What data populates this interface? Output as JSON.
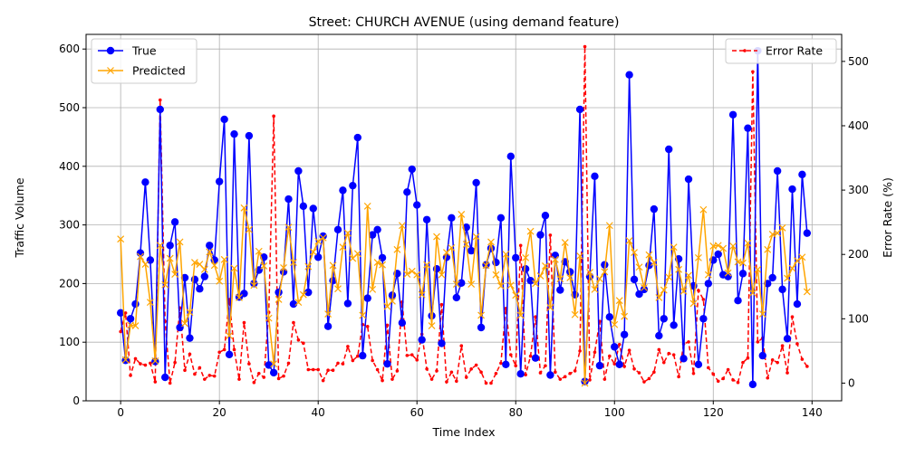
{
  "chart_data": {
    "type": "line",
    "title": "Street: CHURCH AVENUE (using demand feature)",
    "xlabel": "Time Index",
    "ylabel": "Traffic Volume",
    "ylabel_right": "Error Rate (%)",
    "xlim": [
      -7,
      146
    ],
    "ylim": [
      0,
      625
    ],
    "ylim_right": [
      -27.5,
      542
    ],
    "xticks": [
      0,
      20,
      40,
      60,
      80,
      100,
      120,
      140
    ],
    "yticks": [
      0,
      100,
      200,
      300,
      400,
      500,
      600
    ],
    "yticks_right": [
      0,
      100,
      200,
      300,
      400,
      500
    ],
    "grid": true,
    "legend_left": "upper-left",
    "legend_right": "upper-right",
    "colors": {
      "true": "#0000ff",
      "predicted": "#ffa500",
      "error": "#ff0000"
    },
    "x": [
      0,
      1,
      2,
      3,
      4,
      5,
      6,
      7,
      8,
      9,
      10,
      11,
      12,
      13,
      14,
      15,
      16,
      17,
      18,
      19,
      20,
      21,
      22,
      23,
      24,
      25,
      26,
      27,
      28,
      29,
      30,
      31,
      32,
      33,
      34,
      35,
      36,
      37,
      38,
      39,
      40,
      41,
      42,
      43,
      44,
      45,
      46,
      47,
      48,
      49,
      50,
      51,
      52,
      53,
      54,
      55,
      56,
      57,
      58,
      59,
      60,
      61,
      62,
      63,
      64,
      65,
      66,
      67,
      68,
      69,
      70,
      71,
      72,
      73,
      74,
      75,
      76,
      77,
      78,
      79,
      80,
      81,
      82,
      83,
      84,
      85,
      86,
      87,
      88,
      89,
      90,
      91,
      92,
      93,
      94,
      95,
      96,
      97,
      98,
      99,
      100,
      101,
      102,
      103,
      104,
      105,
      106,
      107,
      108,
      109,
      110,
      111,
      112,
      113,
      114,
      115,
      116,
      117,
      118,
      119,
      120,
      121,
      122,
      123,
      124,
      125,
      126,
      127,
      128,
      129,
      130,
      131,
      132,
      133,
      134,
      135,
      136,
      137,
      138,
      139
    ],
    "series": [
      {
        "name": "True",
        "marker": "o",
        "values": [
          150,
          69,
          140,
          165,
          252,
          373,
          240,
          67,
          497,
          40,
          265,
          305,
          125,
          210,
          107,
          207,
          191,
          212,
          265,
          240,
          374,
          480,
          79,
          455,
          177,
          183,
          452,
          200,
          223,
          245,
          61,
          48,
          185,
          220,
          344,
          165,
          392,
          332,
          185,
          328,
          245,
          281,
          127,
          205,
          292,
          359,
          166,
          367,
          449,
          77,
          175,
          283,
          292,
          244,
          63,
          180,
          217,
          133,
          356,
          395,
          334,
          104,
          309,
          145,
          225,
          98,
          245,
          312,
          176,
          201,
          296,
          256,
          372,
          125,
          232,
          260,
          236,
          312,
          62,
          417,
          244,
          46,
          225,
          205,
          73,
          283,
          316,
          44,
          248,
          189,
          237,
          220,
          181,
          497,
          33,
          212,
          383,
          60,
          232,
          143,
          92,
          62,
          113,
          556,
          207,
          182,
          190,
          231,
          327,
          111,
          140,
          429,
          129,
          242,
          72,
          378,
          196,
          62,
          140,
          200,
          240,
          250,
          215,
          212,
          488,
          171,
          217,
          465,
          28,
          597,
          77,
          200,
          210,
          392,
          190,
          106,
          361,
          165,
          386,
          286
        ]
      },
      {
        "name": "Predicted",
        "marker": "x",
        "values": [
          276,
          70,
          129,
          128,
          246,
          233,
          168,
          68,
          265,
          198,
          243,
          216,
          271,
          132,
          151,
          236,
          233,
          224,
          254,
          231,
          204,
          241,
          111,
          226,
          176,
          329,
          292,
          197,
          255,
          230,
          141,
          63,
          173,
          227,
          296,
          236,
          168,
          181,
          229,
          254,
          272,
          278,
          148,
          231,
          191,
          262,
          286,
          243,
          251,
          146,
          332,
          190,
          236,
          232,
          161,
          170,
          258,
          299,
          216,
          221,
          215,
          181,
          232,
          128,
          280,
          215,
          253,
          261,
          199,
          318,
          267,
          199,
          280,
          146,
          231,
          271,
          215,
          196,
          250,
          197,
          180,
          146,
          244,
          289,
          200,
          213,
          230,
          159,
          241,
          208,
          270,
          210,
          147,
          247,
          30,
          219,
          190,
          208,
          220,
          299,
          130,
          171,
          144,
          273,
          253,
          228,
          193,
          249,
          236,
          176,
          189,
          211,
          262,
          224,
          187,
          214,
          166,
          244,
          326,
          215,
          264,
          265,
          260,
          218,
          264,
          237,
          235,
          269,
          184,
          224,
          148,
          258,
          284,
          286,
          295,
          209,
          226,
          239,
          245,
          186
        ]
      },
      {
        "name": "Error Rate",
        "axis": "right",
        "style": "dashed",
        "marker": ".",
        "values": [
          80,
          109,
          12,
          38,
          30,
          28,
          31,
          2,
          440,
          96,
          0,
          32,
          117,
          20,
          45,
          14,
          24,
          6,
          12,
          11,
          48,
          52,
          130,
          52,
          6,
          94,
          30,
          1,
          15,
          9,
          110,
          415,
          7,
          11,
          31,
          94,
          67,
          62,
          21,
          21,
          21,
          4,
          20,
          20,
          31,
          30,
          57,
          35,
          42,
          91,
          88,
          35,
          21,
          4,
          90,
          6,
          19,
          126,
          43,
          44,
          36,
          76,
          22,
          6,
          19,
          122,
          2,
          17,
          3,
          58,
          9,
          22,
          28,
          17,
          0,
          0,
          15,
          31,
          116,
          44,
          27,
          214,
          13,
          42,
          103,
          16,
          27,
          230,
          17,
          6,
          10,
          15,
          19,
          50,
          523,
          5,
          48,
          96,
          6,
          42,
          30,
          60,
          26,
          51,
          22,
          16,
          2,
          7,
          17,
          52,
          32,
          46,
          44,
          10,
          61,
          64,
          15,
          144,
          130,
          24,
          14,
          3,
          7,
          21,
          5,
          1,
          32,
          39,
          484,
          64,
          70,
          8,
          36,
          32,
          58,
          16,
          103,
          61,
          37,
          26
        ]
      }
    ]
  }
}
